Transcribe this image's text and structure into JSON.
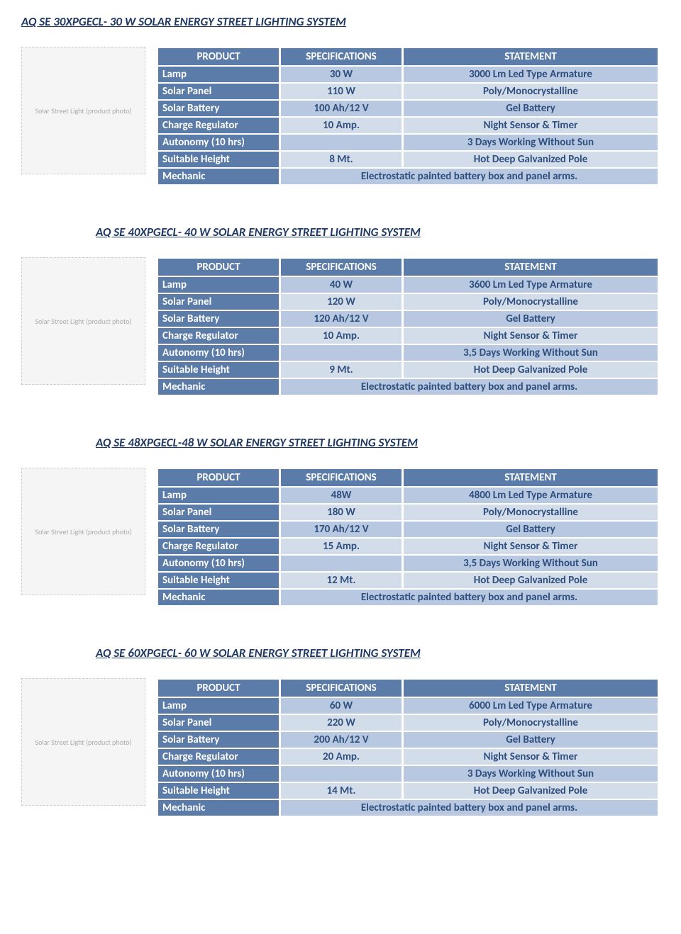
{
  "colors": {
    "header_bg": "#5b7ba8",
    "dark_bg": "#5b7ba8",
    "light_a_bg": "#b7c8e0",
    "light_b_bg": "#d3dce9",
    "text_dark": "#ffffff",
    "text_light": "#2e4e7e",
    "title_color": "#1f3864"
  },
  "image_label": "Solar Street Light\n(product photo)",
  "columns": {
    "c1": "PRODUCT",
    "c2": "SPECIFICATIONS",
    "c3": "STATEMENT"
  },
  "row_labels": {
    "lamp": "Lamp",
    "panel": "Solar Panel",
    "battery": "Solar Battery",
    "charge": "Charge Regulator",
    "autonomy": "Autonomy (10 hrs)",
    "height": "Suitable Height",
    "mechanic": "Mechanic"
  },
  "sections": [
    {
      "title": "AQ SE 30XPGECL- 30 W SOLAR ENERGY STREET LIGHTING SYSTEM",
      "title_indented": false,
      "rows": {
        "lamp_spec": "30 W",
        "lamp_stmt": "3000 Lm Led Type Armature",
        "panel_spec": "110 W",
        "panel_stmt": "Poly/Monocrystalline",
        "battery_spec": "100 Ah/12 V",
        "battery_stmt": "Gel Battery",
        "charge_spec": "10 Amp.",
        "charge_stmt": "Night Sensor & Timer",
        "autonomy_stmt": "3 Days Working Without Sun",
        "height_spec": "8 Mt.",
        "height_stmt": "Hot Deep Galvanized Pole",
        "mechanic_stmt": "Electrostatic painted battery box and panel arms."
      }
    },
    {
      "title": "AQ SE 40XPGECL- 40 W SOLAR ENERGY STREET LIGHTING SYSTEM",
      "title_indented": true,
      "rows": {
        "lamp_spec": "40 W",
        "lamp_stmt": "3600 Lm Led Type Armature",
        "panel_spec": "120 W",
        "panel_stmt": "Poly/Monocrystalline",
        "battery_spec": "120 Ah/12 V",
        "battery_stmt": "Gel Battery",
        "charge_spec": "10 Amp.",
        "charge_stmt": "Night Sensor & Timer",
        "autonomy_stmt": "3,5 Days Working Without Sun",
        "height_spec": "9 Mt.",
        "height_stmt": "Hot Deep Galvanized Pole",
        "mechanic_stmt": "Electrostatic painted battery box and panel arms."
      }
    },
    {
      "title": "AQ SE 48XPGECL-48 W SOLAR ENERGY STREET LIGHTING SYSTEM",
      "title_indented": true,
      "rows": {
        "lamp_spec": "48W",
        "lamp_stmt": "4800 Lm Led Type Armature",
        "panel_spec": "180 W",
        "panel_stmt": "Poly/Monocrystalline",
        "battery_spec": "170 Ah/12 V",
        "battery_stmt": "Gel Battery",
        "charge_spec": "15 Amp.",
        "charge_stmt": "Night Sensor & Timer",
        "autonomy_stmt": "3,5 Days Working Without Sun",
        "height_spec": "12 Mt.",
        "height_stmt": "Hot Deep Galvanized Pole",
        "mechanic_stmt": "Electrostatic painted battery box and panel arms."
      }
    },
    {
      "title": "AQ SE 60XPGECL- 60 W SOLAR ENERGY STREET LIGHTING SYSTEM",
      "title_indented": true,
      "rows": {
        "lamp_spec": "60 W",
        "lamp_stmt": "6000 Lm Led Type Armature",
        "panel_spec": "220 W",
        "panel_stmt": "Poly/Monocrystalline",
        "battery_spec": "200 Ah/12 V",
        "battery_stmt": "Gel Battery",
        "charge_spec": "20 Amp.",
        "charge_stmt": "Night Sensor & Timer",
        "autonomy_stmt": "3 Days Working Without Sun",
        "height_spec": "14 Mt.",
        "height_stmt": "Hot Deep Galvanized Pole",
        "mechanic_stmt": "Electrostatic painted battery box and panel arms."
      }
    }
  ]
}
